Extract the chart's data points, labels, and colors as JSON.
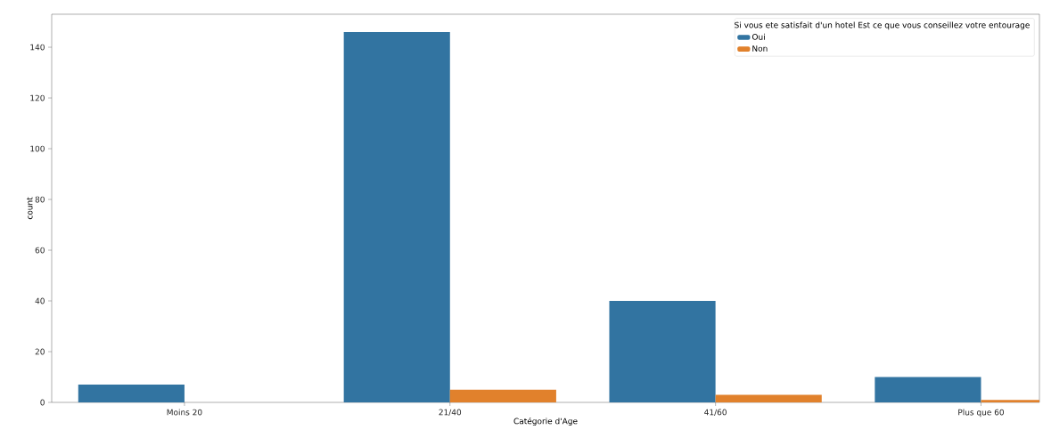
{
  "chart_data": {
    "type": "bar",
    "xlabel": "Catégorie d'Age",
    "ylabel": "count",
    "legend_title": "Si vous ete satisfait d'un hotel Est ce que vous conseillez votre entourage",
    "categories": [
      "Moins 20",
      "21/40",
      "41/60",
      "Plus que 60"
    ],
    "series": [
      {
        "name": "Oui",
        "color": "#3274a1",
        "values": [
          7,
          146,
          40,
          10
        ]
      },
      {
        "name": "Non",
        "color": "#e1812c",
        "values": [
          0,
          5,
          3,
          1
        ]
      }
    ],
    "ylim": [
      0,
      153
    ],
    "yticks": [
      0,
      20,
      40,
      60,
      80,
      100,
      120,
      140
    ],
    "grid": false,
    "legend": "top right"
  }
}
